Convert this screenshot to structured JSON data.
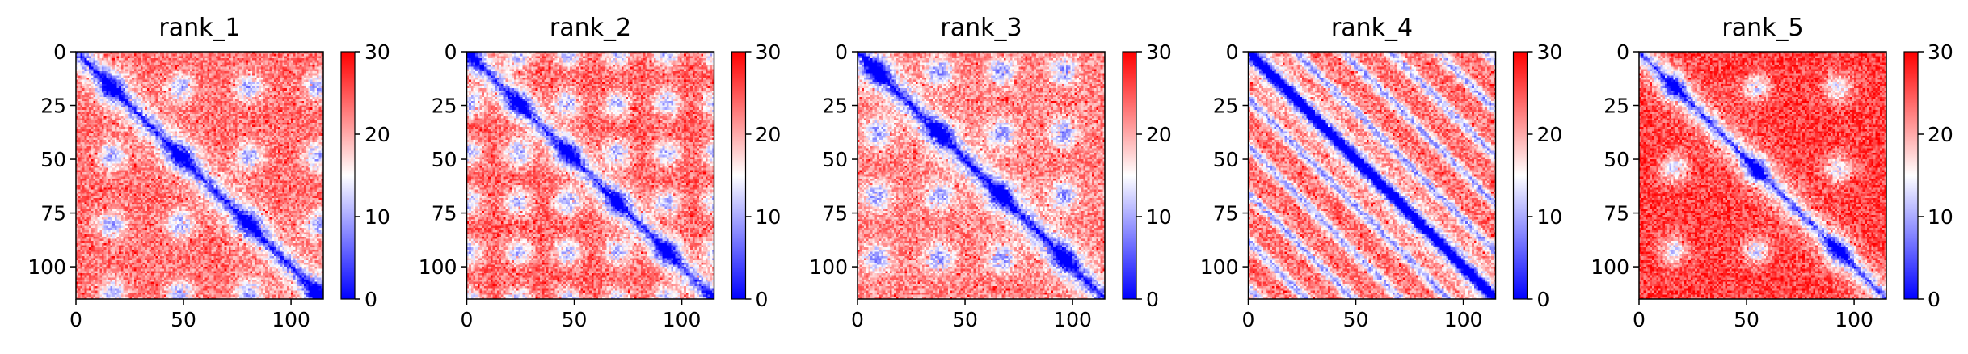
{
  "chart_data": [
    {
      "type": "heatmap",
      "title": "rank_1",
      "x_ticks": [
        0,
        50,
        100
      ],
      "y_ticks": [
        0,
        25,
        50,
        75,
        100
      ],
      "xlim": [
        0,
        115
      ],
      "ylim": [
        115,
        0
      ],
      "colorbar": {
        "ticks": [
          0,
          10,
          20,
          30
        ],
        "range": [
          0,
          30
        ],
        "colormap": "bwr"
      },
      "pattern": {
        "blob_spacing": 32,
        "blob_phase": 0,
        "band_spacing": null,
        "background": 23
      }
    },
    {
      "type": "heatmap",
      "title": "rank_2",
      "x_ticks": [
        0,
        50,
        100
      ],
      "y_ticks": [
        0,
        25,
        50,
        75,
        100
      ],
      "xlim": [
        0,
        115
      ],
      "ylim": [
        115,
        0
      ],
      "colorbar": {
        "ticks": [
          0,
          10,
          20,
          30
        ],
        "range": [
          0,
          30
        ],
        "colormap": "bwr"
      },
      "pattern": {
        "blob_spacing": 23,
        "blob_phase": 11,
        "band_spacing": null,
        "background": 24
      }
    },
    {
      "type": "heatmap",
      "title": "rank_3",
      "x_ticks": [
        0,
        50,
        100
      ],
      "y_ticks": [
        0,
        25,
        50,
        75,
        100
      ],
      "xlim": [
        0,
        115
      ],
      "ylim": [
        115,
        0
      ],
      "colorbar": {
        "ticks": [
          0,
          10,
          20,
          30
        ],
        "range": [
          0,
          30
        ],
        "colormap": "bwr"
      },
      "pattern": {
        "blob_spacing": 29,
        "blob_phase": 6,
        "band_spacing": null,
        "background": 22
      }
    },
    {
      "type": "heatmap",
      "title": "rank_4",
      "x_ticks": [
        0,
        50,
        100
      ],
      "y_ticks": [
        0,
        25,
        50,
        75,
        100
      ],
      "xlim": [
        0,
        115
      ],
      "ylim": [
        115,
        0
      ],
      "colorbar": {
        "ticks": [
          0,
          10,
          20,
          30
        ],
        "range": [
          0,
          30
        ],
        "colormap": "bwr"
      },
      "pattern": {
        "blob_spacing": null,
        "blob_phase": 0,
        "band_spacing": 22,
        "background": 23
      }
    },
    {
      "type": "heatmap",
      "title": "rank_5",
      "x_ticks": [
        0,
        50,
        100
      ],
      "y_ticks": [
        0,
        25,
        50,
        75,
        100
      ],
      "xlim": [
        0,
        115
      ],
      "ylim": [
        115,
        0
      ],
      "colorbar": {
        "ticks": [
          0,
          10,
          20,
          30
        ],
        "range": [
          0,
          30
        ],
        "colormap": "bwr"
      },
      "pattern": {
        "blob_spacing": 38,
        "blob_phase": 3,
        "band_spacing": null,
        "background": 26
      }
    }
  ]
}
